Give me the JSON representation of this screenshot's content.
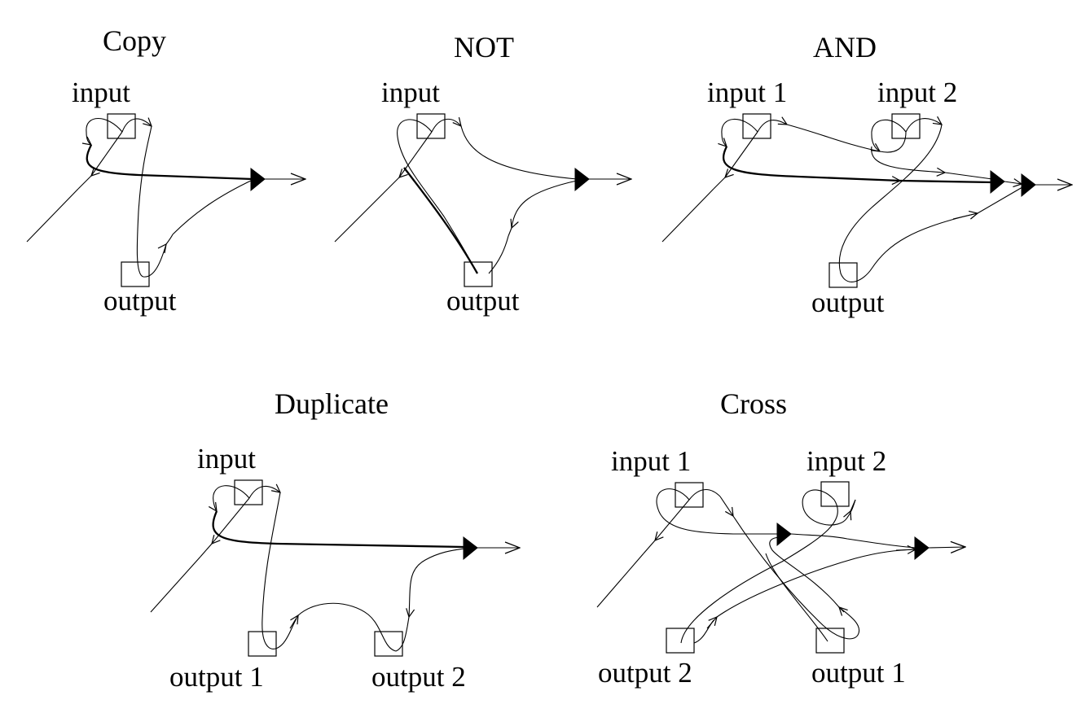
{
  "gadgets": {
    "copy": {
      "title": "Copy",
      "input": "input",
      "output": "output"
    },
    "not": {
      "title": "NOT",
      "input": "input",
      "output": "output"
    },
    "and": {
      "title": "AND",
      "input1": "input 1",
      "input2": "input 2",
      "output": "output"
    },
    "duplicate": {
      "title": "Duplicate",
      "input": "input",
      "output1": "output 1",
      "output2": "output 2"
    },
    "cross": {
      "title": "Cross",
      "input1": "input 1",
      "input2": "input 2",
      "output1": "output 1",
      "output2": "output 2"
    }
  }
}
